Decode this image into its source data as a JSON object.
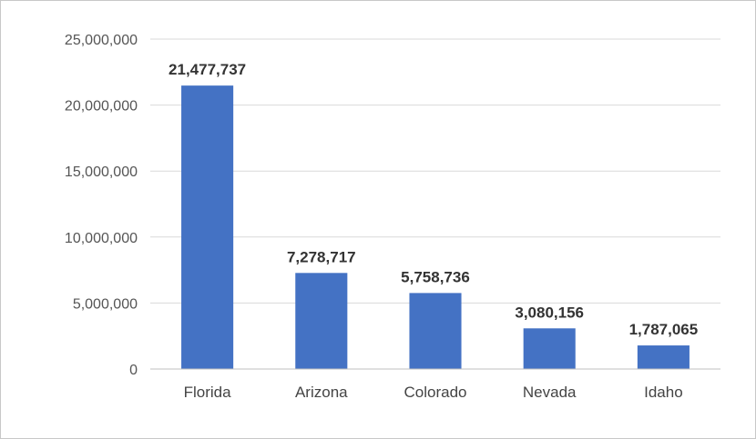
{
  "chart_data": {
    "type": "bar",
    "categories": [
      "Florida",
      "Arizona",
      "Colorado",
      "Nevada",
      "Idaho"
    ],
    "values": [
      21477737,
      7278717,
      5758736,
      3080156,
      1787065
    ],
    "data_labels": [
      "21,477,737",
      "7,278,717",
      "5,758,736",
      "3,080,156",
      "1,787,065"
    ],
    "yticks": [
      0,
      5000000,
      10000000,
      15000000,
      20000000,
      25000000
    ],
    "ytick_labels": [
      "0",
      "5,000,000",
      "10,000,000",
      "15,000,000",
      "20,000,000",
      "25,000,000"
    ],
    "ylim": [
      0,
      25000000
    ],
    "title": "",
    "xlabel": "",
    "ylabel": "",
    "grid": true,
    "legend": "none",
    "bar_color": "#4472C4",
    "grid_color": "#d9d9d9"
  }
}
